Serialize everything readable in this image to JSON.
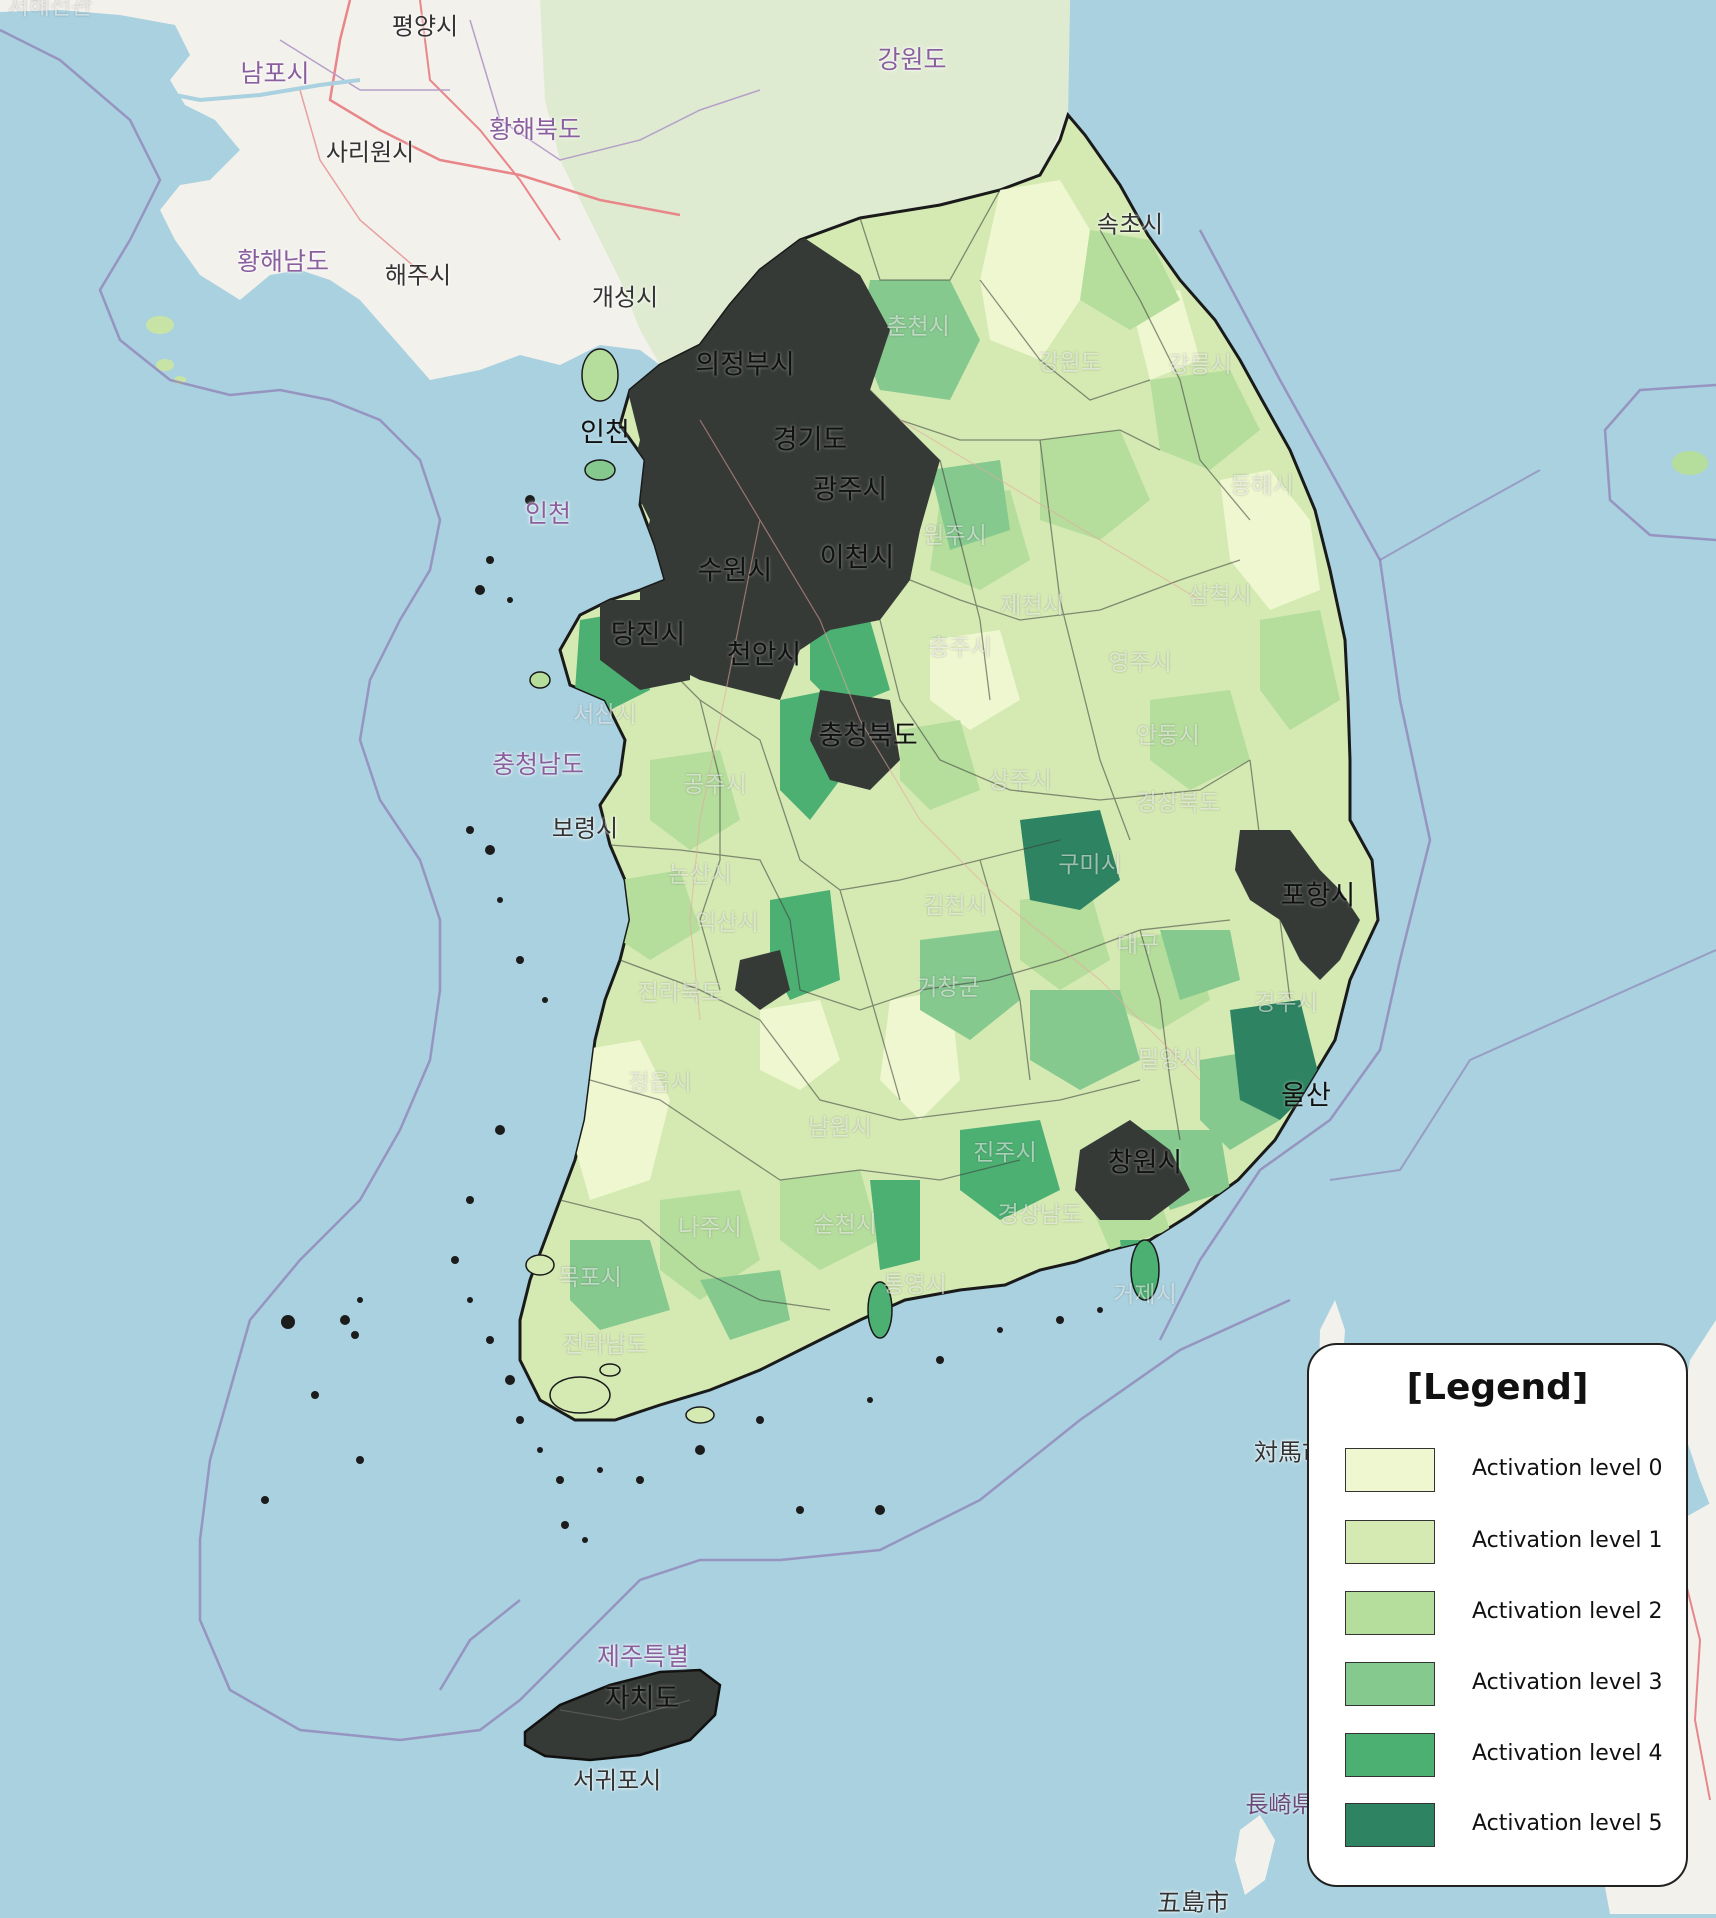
{
  "map": {
    "colors": {
      "sea": "#a9d1df",
      "land": "#f3f1ec",
      "north_green": "#d8e8c8",
      "level_0": "#eef7cf",
      "level_1": "#d4eab2",
      "level_2": "#b5dd9c",
      "level_3": "#86c98f",
      "level_4": "#4db073",
      "level_5": "#2e8462",
      "saturated": "#363a36"
    },
    "labels": {
      "pyongyang": "평양시",
      "nampo": "남포시",
      "gangwon_north": "강원도",
      "hwanghae_bukdo": "황해북도",
      "sariwon": "사리원시",
      "hwanghae_namdo": "황해남도",
      "haeju": "해주시",
      "kaesong": "개성시",
      "sokcho": "속초시",
      "chuncheon": "춘천시",
      "uijeongbu": "의정부시",
      "gangwon_south": "강원도",
      "gangneung": "강릉시",
      "gyeonggi": "경기도",
      "gwangju_gg": "광주시",
      "incheon_short": "인천",
      "incheon": "인천",
      "donghae": "동해시",
      "wonju": "원주시",
      "suwon": "수원시",
      "icheon": "이천시",
      "samcheok": "삼척시",
      "jecheon": "제천시",
      "dangjin": "당진시",
      "cheonan": "천안시",
      "chungju": "충주시",
      "yeongju": "영주시",
      "seosan": "서산시",
      "chungbuk": "충청북도",
      "andong": "안동시",
      "chungnam": "충청남도",
      "gongju": "공주시",
      "sangju": "상주시",
      "gyeongbuk": "경상북도",
      "boryeong": "보령시",
      "gumi": "구미시",
      "pohang": "포항시",
      "nonsan": "논산시",
      "gimcheon": "김천시",
      "daegu": "대구",
      "iksan": "익산시",
      "jeonbuk": "전라북도",
      "geochang": "거창군",
      "gyeongju": "경주시",
      "miryang": "밀양시",
      "ulsan": "울산",
      "jeongeup": "정읍시",
      "namwon": "남원시",
      "jinju": "진주시",
      "changwon": "창원시",
      "gyeongnam": "경상남도",
      "naju": "나주시",
      "suncheon": "순천시",
      "tongyeong": "통영시",
      "geoje": "거제시",
      "mokpo": "목포시",
      "jeonnam": "전라남도",
      "tsushima": "対馬市",
      "jeju_1": "제주특별",
      "jeju_2": "자치도",
      "seogwipo": "서귀포시",
      "nagasaki": "長崎県",
      "goto": "五島市",
      "topleft_corner": "서해선관"
    }
  },
  "legend": {
    "title": "[Legend]",
    "items": [
      {
        "label": "Activation level 0",
        "color": "#eef7cf"
      },
      {
        "label": "Activation level 1",
        "color": "#d4eab2"
      },
      {
        "label": "Activation level 2",
        "color": "#b5dd9c"
      },
      {
        "label": "Activation level 3",
        "color": "#86c98f"
      },
      {
        "label": "Activation level 4",
        "color": "#4db073"
      },
      {
        "label": "Activation level 5",
        "color": "#2e8462"
      }
    ]
  }
}
